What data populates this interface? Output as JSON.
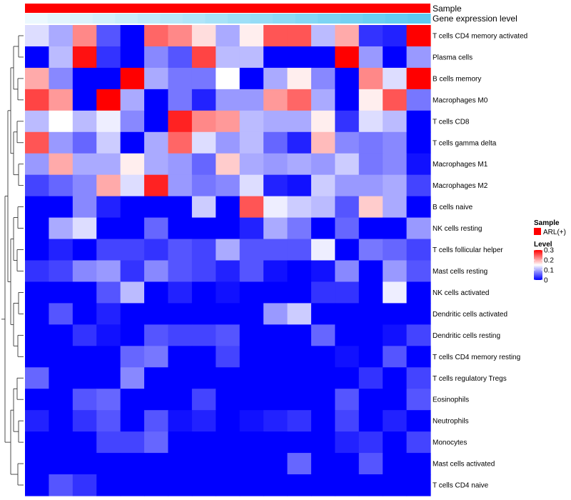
{
  "chart_data": {
    "type": "heatmap",
    "annotation_labels": [
      "Sample",
      "Gene expression level"
    ],
    "annotation_colors": {
      "sample": "#ff0000",
      "expression_low": "#ecf8fe",
      "expression_high": "#5ccaf1"
    },
    "expression_level": [
      0.0,
      0.06,
      0.12,
      0.18,
      0.24,
      0.3,
      0.36,
      0.42,
      0.48,
      0.54,
      0.6,
      0.66,
      0.72,
      0.78,
      0.84,
      0.9,
      0.95,
      1.0
    ],
    "rows": [
      "T cells CD4 memory activated",
      "Plasma cells",
      "B cells memory",
      "Macrophages M0",
      "T cells CD8",
      "T cells gamma delta",
      "Macrophages M1",
      "Macrophages M2",
      "B cells naive",
      "NK cells resting",
      "T cells follicular helper",
      "Mast cells resting",
      "NK cells activated",
      "Dendritic cells activated",
      "Dendritic cells resting",
      "T cells CD4 memory resting",
      "T cells regulatory  Tregs",
      "Eosinophils",
      "Neutrophils",
      "Monocytes",
      "Mast cells activated",
      "T cells CD4 naive"
    ],
    "values": [
      [
        0.13,
        0.1,
        0.22,
        0.05,
        0.0,
        0.24,
        0.22,
        0.17,
        0.1,
        0.16,
        0.25,
        0.25,
        0.11,
        0.2,
        0.03,
        0.02,
        0.3
      ],
      [
        0.0,
        0.11,
        0.29,
        0.03,
        0.0,
        0.08,
        0.05,
        0.26,
        0.11,
        0.11,
        0.0,
        0.0,
        0.0,
        0.3,
        0.09,
        0.0,
        0.09
      ],
      [
        0.2,
        0.08,
        0.0,
        0.0,
        0.3,
        0.1,
        0.07,
        0.07,
        0.15,
        0.0,
        0.1,
        0.16,
        0.08,
        0.0,
        0.22,
        0.13,
        0.3
      ],
      [
        0.26,
        0.21,
        0.0,
        0.3,
        0.1,
        0.0,
        0.07,
        0.02,
        0.09,
        0.09,
        0.21,
        0.24,
        0.1,
        0.0,
        0.16,
        0.25,
        0.07
      ],
      [
        0.11,
        0.15,
        0.11,
        0.14,
        0.08,
        0.0,
        0.28,
        0.22,
        0.21,
        0.11,
        0.1,
        0.1,
        0.16,
        0.03,
        0.13,
        0.11,
        0.0
      ],
      [
        0.25,
        0.09,
        0.06,
        0.12,
        0.0,
        0.1,
        0.24,
        0.13,
        0.09,
        0.11,
        0.06,
        0.02,
        0.19,
        0.08,
        0.07,
        0.08,
        0.0
      ],
      [
        0.09,
        0.2,
        0.1,
        0.1,
        0.16,
        0.1,
        0.09,
        0.06,
        0.18,
        0.1,
        0.09,
        0.1,
        0.09,
        0.12,
        0.07,
        0.08,
        0.01
      ],
      [
        0.04,
        0.06,
        0.08,
        0.2,
        0.13,
        0.28,
        0.09,
        0.07,
        0.08,
        0.13,
        0.02,
        0.01,
        0.12,
        0.09,
        0.09,
        0.1,
        0.04
      ],
      [
        0.0,
        0.0,
        0.08,
        0.02,
        0.0,
        0.0,
        0.0,
        0.12,
        0.0,
        0.25,
        0.14,
        0.12,
        0.11,
        0.05,
        0.18,
        0.1,
        0.0
      ],
      [
        0.0,
        0.1,
        0.13,
        0.0,
        0.0,
        0.06,
        0.0,
        0.0,
        0.0,
        0.02,
        0.1,
        0.07,
        0.0,
        0.06,
        0.0,
        0.0,
        0.09
      ],
      [
        0.0,
        0.02,
        0.0,
        0.04,
        0.04,
        0.03,
        0.05,
        0.04,
        0.1,
        0.05,
        0.05,
        0.05,
        0.14,
        0.0,
        0.07,
        0.06,
        0.04
      ],
      [
        0.03,
        0.04,
        0.08,
        0.09,
        0.03,
        0.08,
        0.05,
        0.04,
        0.02,
        0.05,
        0.01,
        0.0,
        0.01,
        0.08,
        0.0,
        0.09,
        0.05
      ],
      [
        0.0,
        0.0,
        0.0,
        0.05,
        0.11,
        0.0,
        0.02,
        0.0,
        0.01,
        0.0,
        0.0,
        0.0,
        0.03,
        0.03,
        0.0,
        0.14,
        0.0
      ],
      [
        0.0,
        0.05,
        0.0,
        0.02,
        0.0,
        0.0,
        0.0,
        0.0,
        0.0,
        0.0,
        0.09,
        0.12,
        0.0,
        0.0,
        0.0,
        0.0,
        0.0
      ],
      [
        0.0,
        0.0,
        0.03,
        0.01,
        0.0,
        0.05,
        0.04,
        0.04,
        0.05,
        0.0,
        0.0,
        0.0,
        0.06,
        0.0,
        0.0,
        0.01,
        0.04
      ],
      [
        0.0,
        0.0,
        0.0,
        0.0,
        0.06,
        0.07,
        0.0,
        0.0,
        0.04,
        0.0,
        0.0,
        0.0,
        0.0,
        0.01,
        0.0,
        0.05,
        0.0
      ],
      [
        0.06,
        0.0,
        0.0,
        0.0,
        0.08,
        0.0,
        0.0,
        0.0,
        0.0,
        0.0,
        0.0,
        0.0,
        0.0,
        0.0,
        0.03,
        0.0,
        0.04
      ],
      [
        0.0,
        0.0,
        0.05,
        0.06,
        0.0,
        0.0,
        0.0,
        0.04,
        0.0,
        0.0,
        0.0,
        0.0,
        0.0,
        0.05,
        0.0,
        0.0,
        0.05
      ],
      [
        0.02,
        0.0,
        0.03,
        0.05,
        0.0,
        0.05,
        0.01,
        0.02,
        0.0,
        0.01,
        0.02,
        0.03,
        0.0,
        0.04,
        0.0,
        0.02,
        0.0
      ],
      [
        0.0,
        0.0,
        0.0,
        0.04,
        0.04,
        0.06,
        0.0,
        0.0,
        0.0,
        0.0,
        0.0,
        0.0,
        0.0,
        0.02,
        0.03,
        0.0,
        0.04
      ],
      [
        0.0,
        0.0,
        0.0,
        0.0,
        0.0,
        0.0,
        0.0,
        0.0,
        0.0,
        0.0,
        0.0,
        0.06,
        0.0,
        0.0,
        0.05,
        0.0,
        0.0
      ],
      [
        0.0,
        0.05,
        0.03,
        0.0,
        0.0,
        0.0,
        0.0,
        0.0,
        0.0,
        0.0,
        0.0,
        0.0,
        0.0,
        0.0,
        0.0,
        0.0,
        0.0
      ]
    ],
    "legend": {
      "sample_title": "Sample",
      "sample_entry": "ARL(+)",
      "level_title": "Level",
      "level_ticks": [
        "0.3",
        "0.2",
        "0.1",
        "0"
      ],
      "level_tick_values": [
        0.3,
        0.2,
        0.1,
        0.0
      ],
      "color_scale": {
        "min": 0.0,
        "mid": 0.15,
        "max": 0.3,
        "low": "#0000ff",
        "midcolor": "#ffffff",
        "high": "#ff0000"
      }
    },
    "dendrogram": "row-clustering",
    "row_clusters": [
      [
        0,
        1
      ],
      [
        2,
        3
      ],
      [
        4,
        5
      ],
      [
        6,
        7
      ],
      [
        8,
        9
      ],
      [
        10,
        11
      ],
      [
        12,
        13
      ],
      [
        14,
        15
      ],
      [
        16,
        17
      ],
      [
        18,
        19
      ],
      [
        20,
        21
      ]
    ]
  }
}
